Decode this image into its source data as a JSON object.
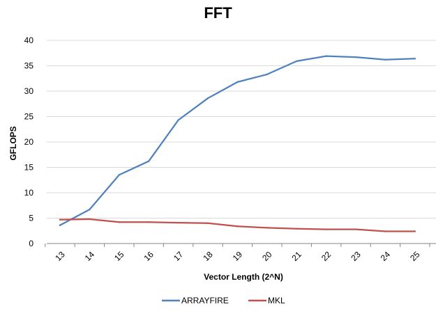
{
  "chart_data": {
    "type": "line",
    "title": "FFT",
    "xlabel": "Vector Length (2^N)",
    "ylabel": "GFLOPS",
    "categories": [
      "13",
      "14",
      "15",
      "16",
      "17",
      "18",
      "19",
      "20",
      "21",
      "22",
      "23",
      "24",
      "25"
    ],
    "ylim": [
      0,
      40
    ],
    "yticks": [
      "0",
      "5",
      "10",
      "15",
      "20",
      "25",
      "30",
      "35",
      "40"
    ],
    "grid": true,
    "legend_position": "bottom",
    "series": [
      {
        "name": "ARRAYFIRE",
        "color": "#4f81bd",
        "values": [
          3.6,
          6.7,
          13.5,
          16.2,
          24.3,
          28.6,
          31.8,
          33.3,
          35.9,
          36.9,
          36.7,
          36.2,
          36.4
        ]
      },
      {
        "name": "MKL",
        "color": "#c0504d",
        "values": [
          4.7,
          4.8,
          4.2,
          4.2,
          4.1,
          4.0,
          3.4,
          3.1,
          2.9,
          2.8,
          2.8,
          2.4,
          2.4
        ]
      }
    ]
  }
}
